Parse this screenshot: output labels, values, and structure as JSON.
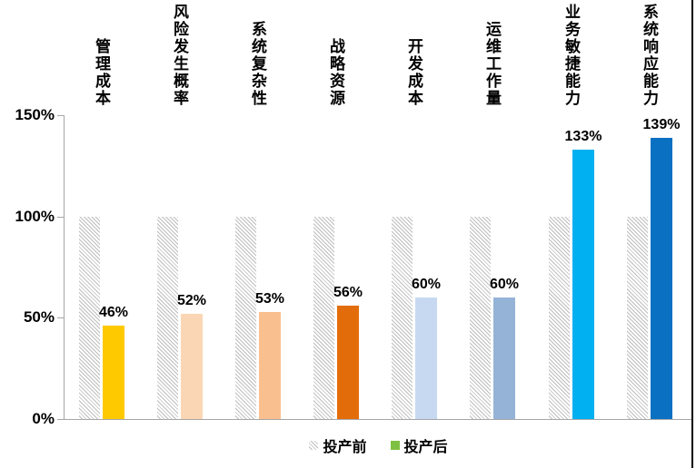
{
  "chart_data": {
    "type": "bar",
    "title": "",
    "categories": [
      "管理成本",
      "风险发生概率",
      "系统复杂性",
      "战略资源",
      "开发成本",
      "运维工作量",
      "业务敏捷能力",
      "系统响应能力"
    ],
    "series": [
      {
        "name": "投产前",
        "values": [
          100,
          100,
          100,
          100,
          100,
          100,
          100,
          100
        ],
        "style": "hatched-gray"
      },
      {
        "name": "投产后",
        "values": [
          46,
          52,
          53,
          56,
          60,
          60,
          133,
          139
        ],
        "colors": [
          "#FFC900",
          "#FBD6B4",
          "#FABF8F",
          "#E36C0A",
          "#C6D9F1",
          "#95B3D7",
          "#00B0F0",
          "#0A70C2"
        ]
      }
    ],
    "data_labels": [
      "46%",
      "52%",
      "53%",
      "56%",
      "60%",
      "60%",
      "133%",
      "139%"
    ],
    "y_ticks": [
      "0%",
      "50%",
      "100%",
      "150%"
    ],
    "y_tick_values": [
      0,
      50,
      100,
      150
    ],
    "ylim": [
      0,
      150
    ],
    "grid": false,
    "legend_position": "bottom",
    "legend": [
      {
        "label": "投产前",
        "swatch": "hatch"
      },
      {
        "label": "投产后",
        "swatch": "#7EC142"
      }
    ],
    "colors_meta": {
      "axis": "#a6a6a6",
      "hatch_line": "#bdbdbd",
      "text": "#000000"
    }
  }
}
